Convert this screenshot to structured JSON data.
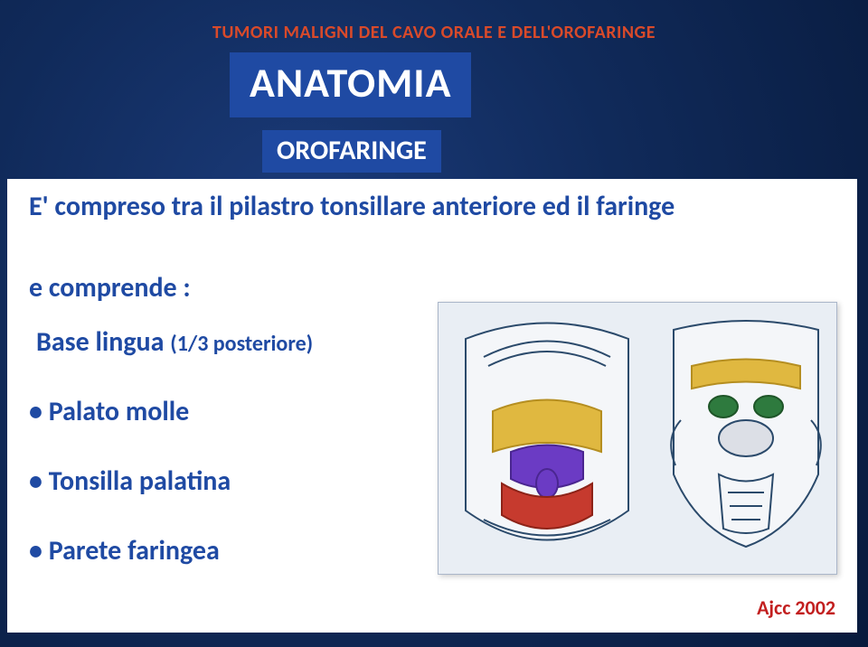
{
  "header": "TUMORI MALIGNI DEL CAVO ORALE E DELL'OROFARINGE",
  "title": "ANATOMIA",
  "subtitle": "OROFARINGE",
  "intro": "E' compreso tra il pilastro tonsillare anteriore ed il faringe",
  "sublabel": "e comprende :",
  "bullets": [
    {
      "label": "Base lingua",
      "paren": "(1/3 posteriore)",
      "dot": false,
      "sub": true
    },
    {
      "label": "Palato molle",
      "dot": true
    },
    {
      "label": "Tonsilla palatina",
      "dot": true
    },
    {
      "label": "Parete faringea",
      "dot": true
    }
  ],
  "credit": "Ajcc 2002",
  "colors": {
    "accent_blue": "#1f4aa3",
    "header_red": "#d94a2a",
    "credit_red": "#c21f1f",
    "fig_outline": "#2b4a6b",
    "fig_yellow": "#e0b840",
    "fig_purple": "#6b3bc4",
    "fig_red": "#c63a2e",
    "fig_bg": "#e9eef4",
    "fig_green": "#2e7a3e"
  }
}
